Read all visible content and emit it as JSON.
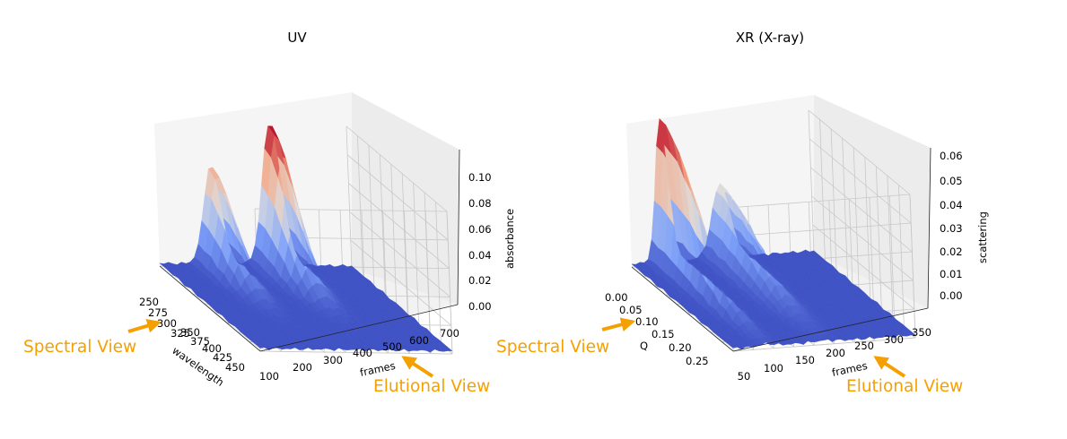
{
  "chart_data": [
    {
      "type": "surface3d",
      "title": "UV",
      "colormap": "coolwarm",
      "x_axis": {
        "label": "wavelength",
        "ticks": [
          "250",
          "275",
          "300",
          "325",
          "350",
          "375",
          "400",
          "425",
          "450"
        ],
        "range": [
          250,
          450
        ]
      },
      "y_axis": {
        "label": "frames",
        "ticks": [
          "100",
          "200",
          "300",
          "400",
          "500",
          "600",
          "700"
        ],
        "range": [
          50,
          750
        ]
      },
      "z_axis": {
        "label": "absorbance",
        "ticks": [
          "0.00",
          "0.02",
          "0.04",
          "0.06",
          "0.08",
          "0.10"
        ],
        "range": [
          0,
          0.11
        ]
      },
      "peaks": [
        {
          "frames": 250,
          "wavelength": 280,
          "value": 0.076
        },
        {
          "frames": 470,
          "wavelength": 280,
          "value": 0.11
        }
      ],
      "annotations": [
        {
          "text": "Spectral View",
          "points_to": "wavelength axis"
        },
        {
          "text": "Elutional View",
          "points_to": "frames axis"
        }
      ]
    },
    {
      "type": "surface3d",
      "title": "XR (X-ray)",
      "colormap": "coolwarm",
      "x_axis": {
        "label": "Q",
        "ticks": [
          "0.00",
          "0.05",
          "0.10",
          "0.15",
          "0.20",
          "0.25"
        ],
        "range": [
          0,
          0.27
        ]
      },
      "y_axis": {
        "label": "frames",
        "ticks": [
          "50",
          "100",
          "150",
          "200",
          "250",
          "300",
          "350"
        ],
        "range": [
          50,
          380
        ]
      },
      "z_axis": {
        "label": "scattering",
        "ticks": [
          "0.00",
          "0.01",
          "0.02",
          "0.03",
          "0.04",
          "0.05",
          "0.06"
        ],
        "range": [
          0,
          0.06
        ]
      },
      "peaks": [
        {
          "frames": 110,
          "Q": 0.01,
          "value": 0.06
        },
        {
          "frames": 215,
          "Q": 0.01,
          "value": 0.031
        }
      ],
      "annotations": [
        {
          "text": "Spectral View",
          "points_to": "Q axis"
        },
        {
          "text": "Elutional View",
          "points_to": "frames axis"
        }
      ]
    }
  ]
}
